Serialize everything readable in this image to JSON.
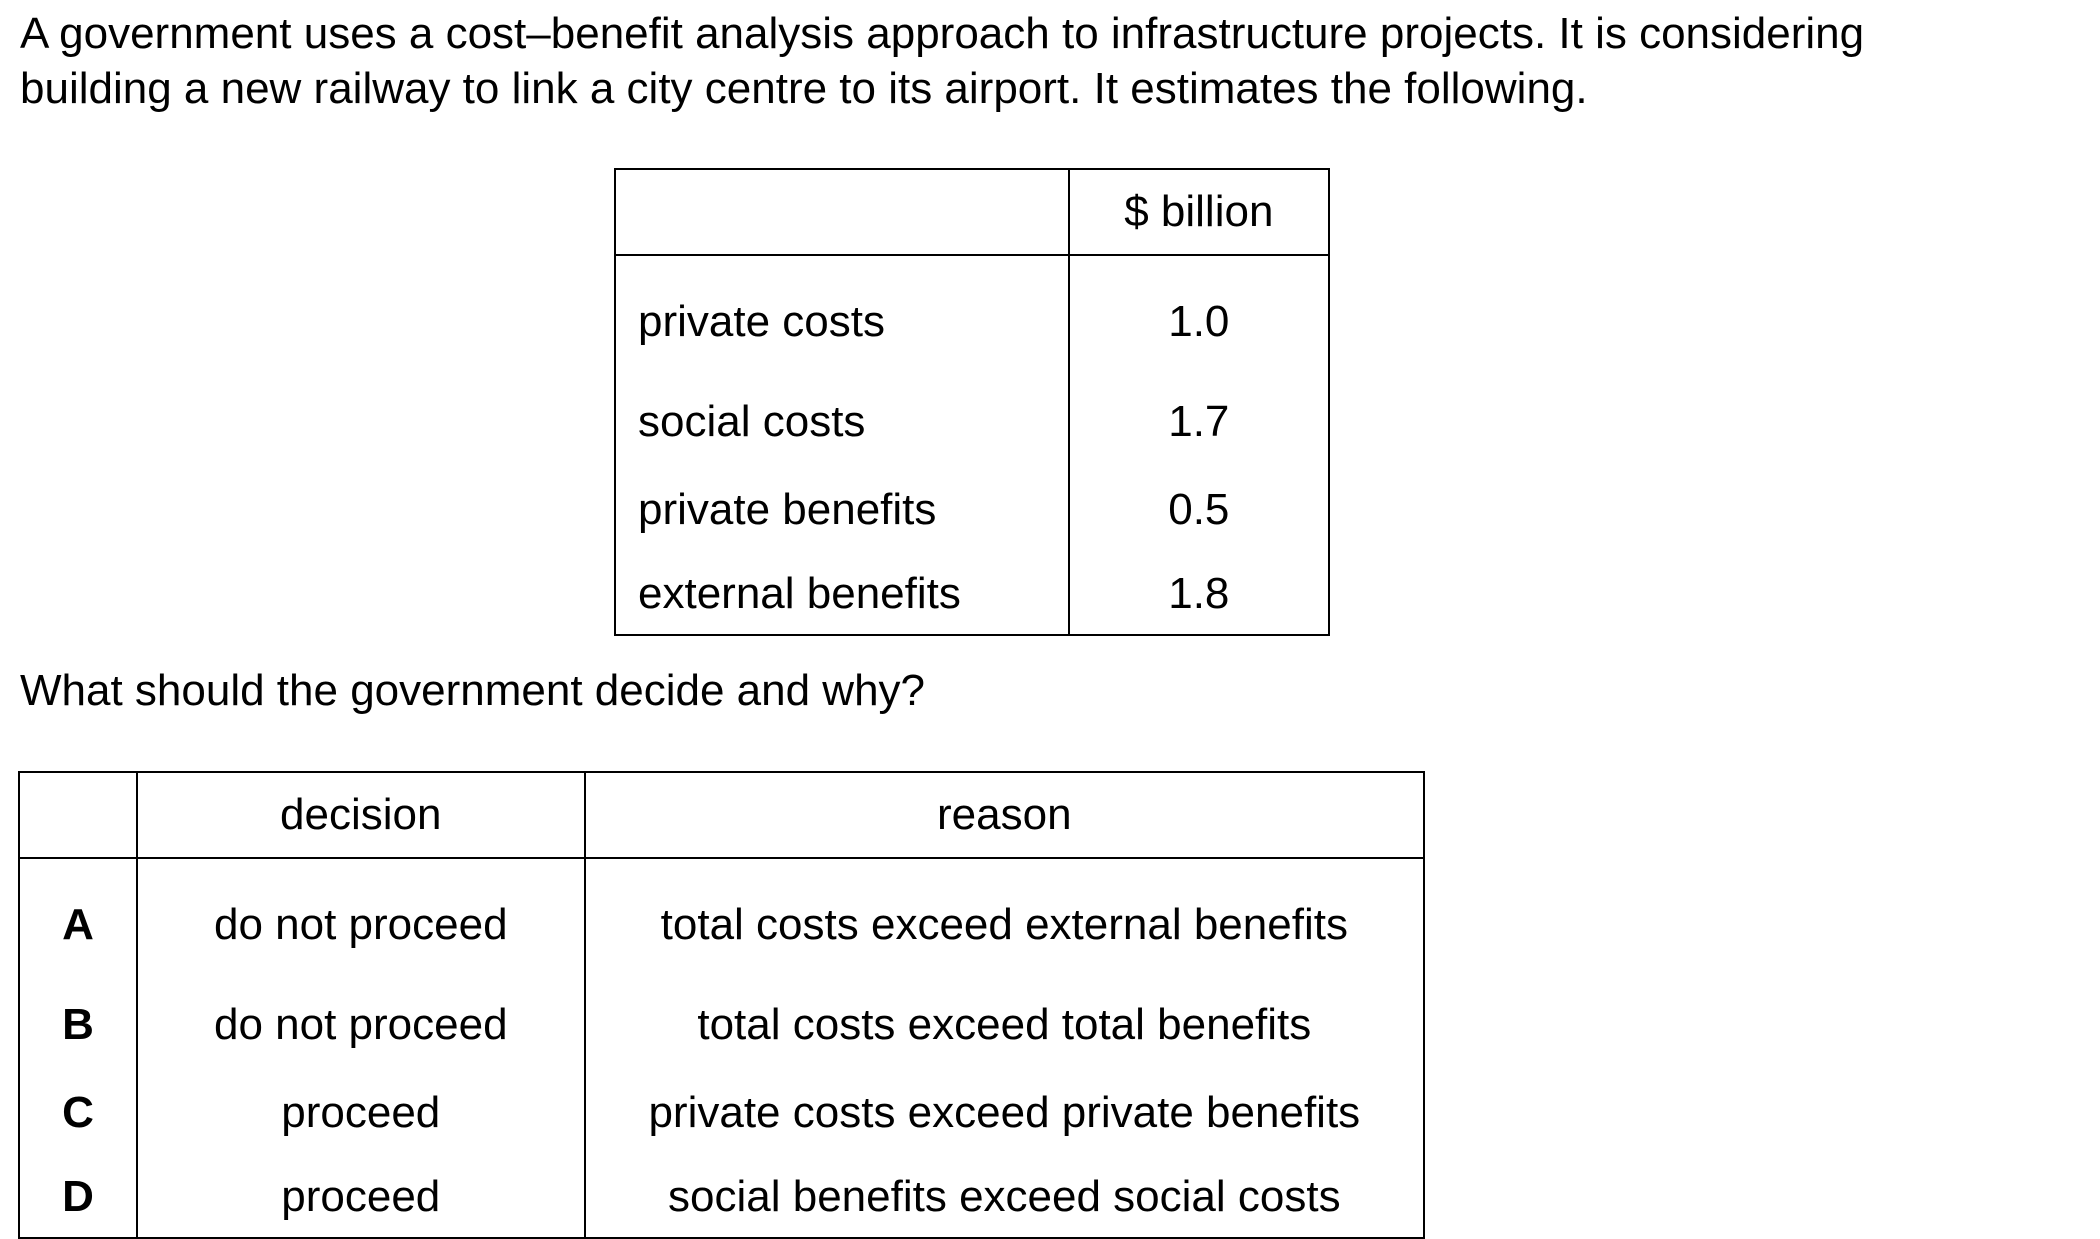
{
  "intro": {
    "line1": "A government uses a cost–benefit analysis approach to infrastructure projects. It is considering",
    "line2": "building a new railway to link a city centre to its airport. It estimates the following."
  },
  "data_table": {
    "header_blank": "",
    "header_unit": "$ billion",
    "rows": [
      {
        "label": "private costs",
        "value": "1.0"
      },
      {
        "label": "social costs",
        "value": "1.7"
      },
      {
        "label": "private benefits",
        "value": "0.5"
      },
      {
        "label": "external benefits",
        "value": "1.8"
      }
    ]
  },
  "question": "What should the government decide and why?",
  "options_table": {
    "header_blank": "",
    "header_decision": "decision",
    "header_reason": "reason",
    "rows": [
      {
        "key": "A",
        "decision": "do not proceed",
        "reason": "total costs exceed external benefits"
      },
      {
        "key": "B",
        "decision": "do not proceed",
        "reason": "total costs exceed total benefits"
      },
      {
        "key": "C",
        "decision": "proceed",
        "reason": "private costs exceed private benefits"
      },
      {
        "key": "D",
        "decision": "proceed",
        "reason": "social benefits exceed social costs"
      }
    ]
  }
}
